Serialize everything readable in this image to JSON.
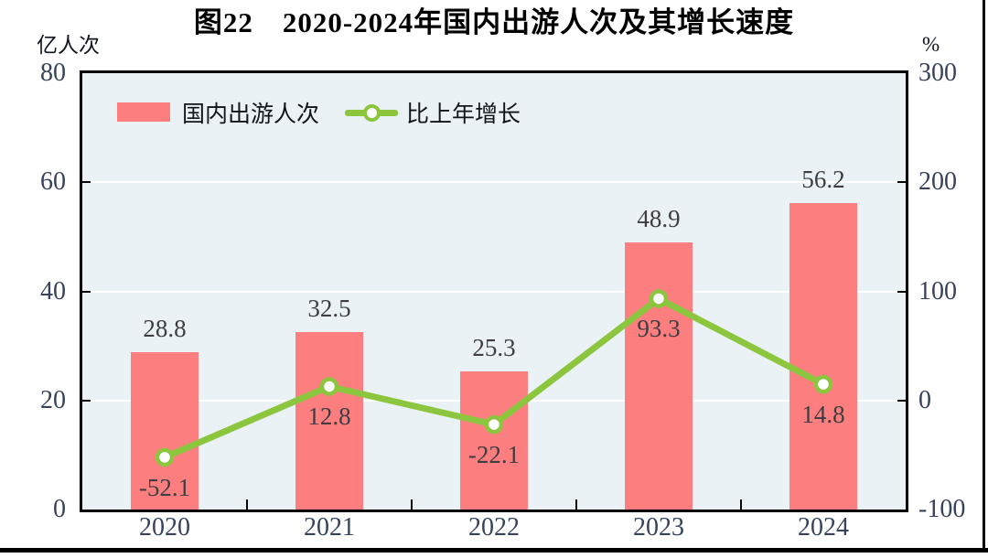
{
  "title": "图22　2020-2024年国内出游人次及其增长速度",
  "chart_data": {
    "type": "bar",
    "title": "图22　2020-2024年国内出游人次及其增长速度",
    "categories": [
      "2020",
      "2021",
      "2022",
      "2023",
      "2024"
    ],
    "series": [
      {
        "name": "国内出游人次",
        "type": "bar",
        "axis": "left",
        "values": [
          28.8,
          32.5,
          25.3,
          48.9,
          56.2
        ],
        "labels": [
          "28.8",
          "32.5",
          "25.3",
          "48.9",
          "56.2"
        ],
        "color": "#FC7E7E"
      },
      {
        "name": "比上年增长",
        "type": "line",
        "axis": "right",
        "values": [
          -52.1,
          12.8,
          -22.1,
          93.3,
          14.8
        ],
        "labels": [
          "-52.1",
          "12.8",
          "-22.1",
          "93.3",
          "14.8"
        ],
        "color": "#8CC63F",
        "marker": "circle-white-fill"
      }
    ],
    "left_axis": {
      "label": "亿人次",
      "min": 0,
      "max": 80,
      "ticks": [
        0,
        20,
        40,
        60,
        80
      ]
    },
    "right_axis": {
      "label": "%",
      "min": -100,
      "max": 300,
      "ticks": [
        -100,
        0,
        100,
        200,
        300
      ]
    },
    "grid": true,
    "legend_position": "inside-top-left",
    "plot_background": "#EBF2F6",
    "gridline_color": "#FFFFFF"
  }
}
